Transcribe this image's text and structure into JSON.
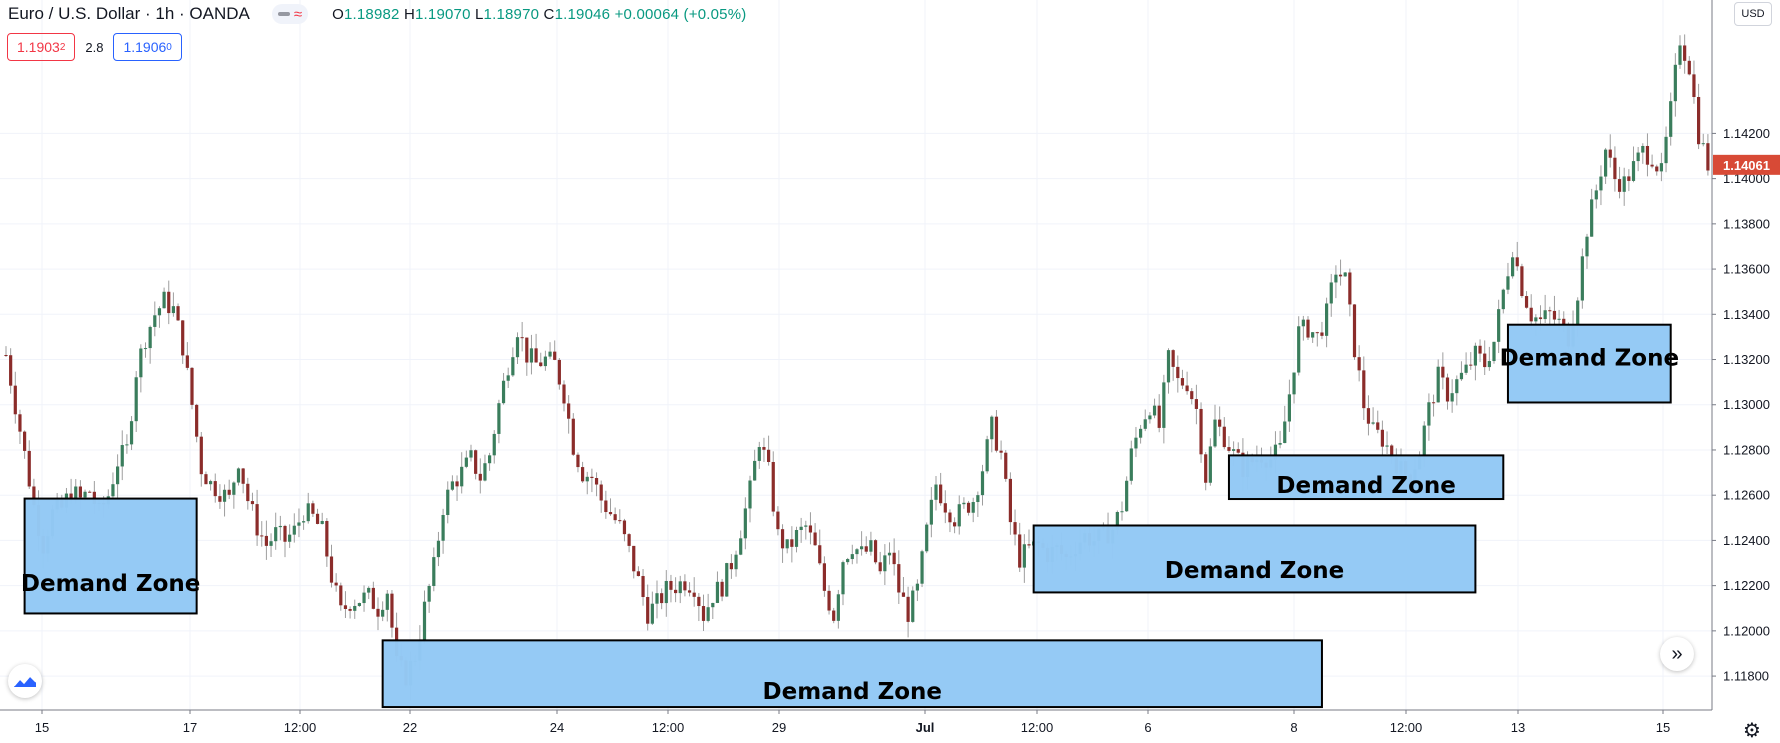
{
  "header": {
    "symbol_title": "Euro / U.S. Dollar · 1h · OANDA",
    "ohlc": {
      "o_label": "O",
      "o": "1.18982",
      "h_label": "H",
      "h": "1.19070",
      "l_label": "L",
      "l": "1.18970",
      "c_label": "C",
      "c": "1.19046",
      "change": "+0.00064 (+0.05%)"
    },
    "sell_price": "1.1903",
    "sell_price_sup": "2",
    "spread": "2.8",
    "buy_price": "1.1906",
    "buy_price_sup": "0"
  },
  "price_axis": {
    "currency": "USD",
    "last_price_label": "1.14061",
    "last_price_color": "#d84a36"
  },
  "colors": {
    "up": "#3a7d5c",
    "down": "#8b2c2a",
    "zone_fill": "#93c9f5",
    "zone_border": "#000000",
    "grid": "#f0f3fa"
  },
  "icons": {
    "logo": "tradingview-logo-icon",
    "scroll": "chevron-double-right-icon",
    "settings": "gear-icon"
  },
  "chart_data": {
    "type": "candlestick",
    "timeframe": "1h",
    "ylim": [
      1.1165,
      1.1479
    ],
    "y_ticks": [
      1.118,
      1.12,
      1.122,
      1.124,
      1.126,
      1.128,
      1.13,
      1.132,
      1.134,
      1.136,
      1.138,
      1.14,
      1.142
    ],
    "y_tick_labels": [
      "1.11800",
      "1.12000",
      "1.12200",
      "1.12400",
      "1.12600",
      "1.12800",
      "1.13000",
      "1.13200",
      "1.13400",
      "1.13600",
      "1.13800",
      "1.14000",
      "1.14200"
    ],
    "x_ticks": [
      {
        "label": "15",
        "bold": false
      },
      {
        "label": "17",
        "bold": false
      },
      {
        "label": "12:00",
        "bold": false
      },
      {
        "label": "22",
        "bold": false
      },
      {
        "label": "24",
        "bold": false
      },
      {
        "label": "12:00",
        "bold": false
      },
      {
        "label": "29",
        "bold": false
      },
      {
        "label": "Jul",
        "bold": true
      },
      {
        "label": "12:00",
        "bold": false
      },
      {
        "label": "6",
        "bold": false
      },
      {
        "label": "8",
        "bold": false
      },
      {
        "label": "12:00",
        "bold": false
      },
      {
        "label": "13",
        "bold": false
      },
      {
        "label": "15",
        "bold": false
      }
    ],
    "last_price": 1.14061,
    "close_path": [
      [
        0,
        1.1322
      ],
      [
        2,
        1.13
      ],
      [
        4,
        1.1278
      ],
      [
        6,
        1.1255
      ],
      [
        8,
        1.1238
      ],
      [
        10,
        1.1252
      ],
      [
        12,
        1.1254
      ],
      [
        14,
        1.1262
      ],
      [
        16,
        1.1258
      ],
      [
        18,
        1.1262
      ],
      [
        20,
        1.1252
      ],
      [
        22,
        1.126
      ],
      [
        24,
        1.1275
      ],
      [
        26,
        1.128
      ],
      [
        28,
        1.1315
      ],
      [
        30,
        1.133
      ],
      [
        32,
        1.134
      ],
      [
        34,
        1.1346
      ],
      [
        36,
        1.1342
      ],
      [
        38,
        1.1326
      ],
      [
        40,
        1.13
      ],
      [
        42,
        1.1272
      ],
      [
        44,
        1.1265
      ],
      [
        46,
        1.1262
      ],
      [
        48,
        1.1258
      ],
      [
        50,
        1.1276
      ],
      [
        52,
        1.1258
      ],
      [
        54,
        1.1246
      ],
      [
        56,
        1.1238
      ],
      [
        58,
        1.1243
      ],
      [
        60,
        1.124
      ],
      [
        62,
        1.1244
      ],
      [
        64,
        1.1253
      ],
      [
        66,
        1.125
      ],
      [
        68,
        1.1244
      ],
      [
        70,
        1.1224
      ],
      [
        72,
        1.1208
      ],
      [
        74,
        1.1213
      ],
      [
        76,
        1.1214
      ],
      [
        78,
        1.1215
      ],
      [
        80,
        1.121
      ],
      [
        82,
        1.1218
      ],
      [
        84,
        1.1185
      ],
      [
        86,
        1.118
      ],
      [
        88,
        1.1189
      ],
      [
        90,
        1.121
      ],
      [
        92,
        1.1228
      ],
      [
        94,
        1.1255
      ],
      [
        96,
        1.1265
      ],
      [
        98,
        1.127
      ],
      [
        100,
        1.1276
      ],
      [
        102,
        1.1268
      ],
      [
        104,
        1.1278
      ],
      [
        106,
        1.13
      ],
      [
        108,
        1.1318
      ],
      [
        110,
        1.1334
      ],
      [
        112,
        1.1322
      ],
      [
        114,
        1.1318
      ],
      [
        116,
        1.132
      ],
      [
        118,
        1.1318
      ],
      [
        120,
        1.1305
      ],
      [
        122,
        1.1282
      ],
      [
        124,
        1.127
      ],
      [
        126,
        1.1268
      ],
      [
        128,
        1.1258
      ],
      [
        130,
        1.1252
      ],
      [
        132,
        1.1246
      ],
      [
        134,
        1.1235
      ],
      [
        136,
        1.1222
      ],
      [
        138,
        1.1208
      ],
      [
        140,
        1.1212
      ],
      [
        142,
        1.1218
      ],
      [
        144,
        1.122
      ],
      [
        146,
        1.1222
      ],
      [
        148,
        1.122
      ],
      [
        150,
        1.1207
      ],
      [
        152,
        1.1216
      ],
      [
        154,
        1.122
      ],
      [
        156,
        1.123
      ],
      [
        158,
        1.1245
      ],
      [
        160,
        1.1262
      ],
      [
        162,
        1.1285
      ],
      [
        164,
        1.127
      ],
      [
        166,
        1.1242
      ],
      [
        168,
        1.1236
      ],
      [
        170,
        1.1242
      ],
      [
        172,
        1.1246
      ],
      [
        174,
        1.1236
      ],
      [
        176,
        1.1218
      ],
      [
        178,
        1.1207
      ],
      [
        180,
        1.1232
      ],
      [
        182,
        1.1238
      ],
      [
        184,
        1.1234
      ],
      [
        186,
        1.1236
      ],
      [
        188,
        1.1225
      ],
      [
        190,
        1.1236
      ],
      [
        192,
        1.1218
      ],
      [
        194,
        1.1208
      ],
      [
        196,
        1.1218
      ],
      [
        198,
        1.1244
      ],
      [
        200,
        1.1265
      ],
      [
        202,
        1.1256
      ],
      [
        204,
        1.125
      ],
      [
        206,
        1.1254
      ],
      [
        208,
        1.1258
      ],
      [
        210,
        1.1272
      ],
      [
        212,
        1.129
      ],
      [
        214,
        1.1278
      ],
      [
        216,
        1.1248
      ],
      [
        218,
        1.1232
      ],
      [
        220,
        1.1236
      ],
      [
        222,
        1.1238
      ],
      [
        224,
        1.1234
      ],
      [
        226,
        1.1236
      ],
      [
        228,
        1.1232
      ],
      [
        230,
        1.1238
      ],
      [
        232,
        1.1242
      ],
      [
        234,
        1.124
      ],
      [
        236,
        1.1242
      ],
      [
        238,
        1.1245
      ],
      [
        240,
        1.1255
      ],
      [
        242,
        1.1278
      ],
      [
        244,
        1.1292
      ],
      [
        246,
        1.13
      ],
      [
        248,
        1.129
      ],
      [
        250,
        1.132
      ],
      [
        252,
        1.131
      ],
      [
        254,
        1.131
      ],
      [
        256,
        1.1298
      ],
      [
        258,
        1.1268
      ],
      [
        260,
        1.1292
      ],
      [
        262,
        1.1286
      ],
      [
        264,
        1.1278
      ],
      [
        266,
        1.1272
      ],
      [
        268,
        1.1275
      ],
      [
        270,
        1.1278
      ],
      [
        272,
        1.1276
      ],
      [
        274,
        1.128
      ],
      [
        276,
        1.1305
      ],
      [
        278,
        1.1332
      ],
      [
        280,
        1.1334
      ],
      [
        282,
        1.133
      ],
      [
        284,
        1.134
      ],
      [
        286,
        1.136
      ],
      [
        288,
        1.1355
      ],
      [
        290,
        1.1325
      ],
      [
        292,
        1.13
      ],
      [
        294,
        1.1288
      ],
      [
        296,
        1.1285
      ],
      [
        298,
        1.1278
      ],
      [
        300,
        1.1271
      ],
      [
        302,
        1.1268
      ],
      [
        304,
        1.128
      ],
      [
        306,
        1.1298
      ],
      [
        308,
        1.1312
      ],
      [
        310,
        1.1305
      ],
      [
        312,
        1.131
      ],
      [
        314,
        1.1315
      ],
      [
        316,
        1.1322
      ],
      [
        318,
        1.1318
      ],
      [
        320,
        1.1328
      ],
      [
        322,
        1.135
      ],
      [
        324,
        1.137
      ],
      [
        326,
        1.1352
      ],
      [
        328,
        1.134
      ],
      [
        330,
        1.1337
      ],
      [
        332,
        1.134
      ],
      [
        334,
        1.1336
      ],
      [
        336,
        1.133
      ],
      [
        338,
        1.135
      ],
      [
        340,
        1.1378
      ],
      [
        342,
        1.1395
      ],
      [
        344,
        1.1413
      ],
      [
        346,
        1.14
      ],
      [
        348,
        1.1398
      ],
      [
        350,
        1.1405
      ],
      [
        352,
        1.1412
      ],
      [
        354,
        1.141
      ],
      [
        356,
        1.1402
      ],
      [
        358,
        1.143
      ],
      [
        360,
        1.1462
      ],
      [
        362,
        1.145
      ],
      [
        364,
        1.142
      ],
      [
        366,
        1.1406
      ]
    ],
    "zones": [
      {
        "label": "Demand Zone",
        "t0": 4,
        "t1": 41,
        "top": 1.12585,
        "bottom": 1.12077
      },
      {
        "label": "Demand Zone",
        "t0": 81,
        "t1": 283,
        "top": 1.11958,
        "bottom": 1.11663
      },
      {
        "label": "Demand Zone",
        "t0": 221,
        "t1": 316,
        "top": 1.12466,
        "bottom": 1.1217
      },
      {
        "label": "Demand Zone",
        "t0": 263,
        "t1": 322,
        "top": 1.12776,
        "bottom": 1.12583
      },
      {
        "label": "Demand Zone",
        "t0": 323,
        "t1": 358,
        "top": 1.13354,
        "bottom": 1.1301
      }
    ]
  }
}
